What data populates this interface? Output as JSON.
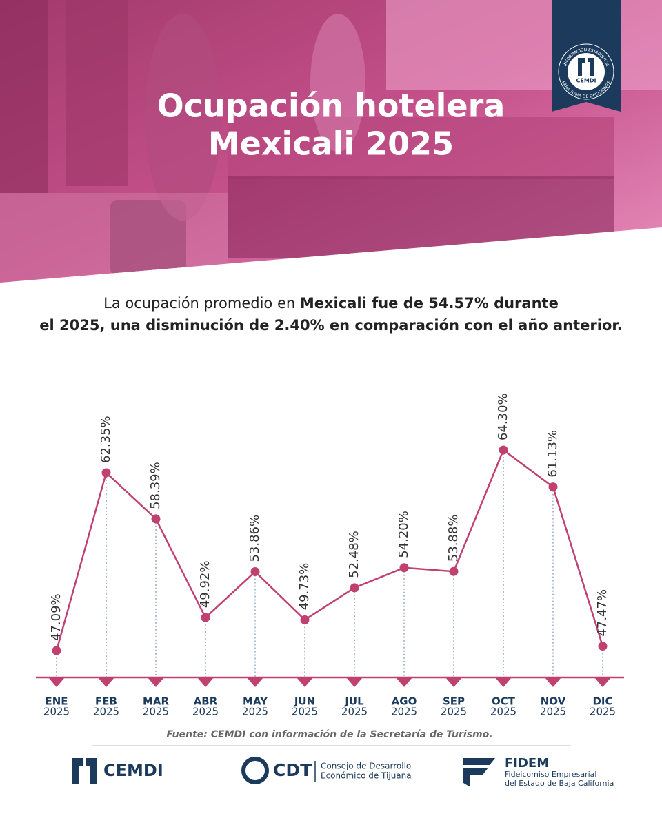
{
  "header": {
    "title_lines": [
      "Ocupación hotelera",
      "Mexicali 2025"
    ],
    "badge": {
      "ring_top": "INFORMACIÓN ESTADÍSTICA",
      "ring_bottom": "PARA TOMA DE DECISIONES",
      "name": "CEMDI"
    }
  },
  "summary": {
    "line1_regular": "La ocupación promedio en ",
    "line1_bold": "Mexicali fue de 54.57% durante",
    "line2": "el 2025, una disminución de 2.40% en comparación con el año anterior."
  },
  "chart_data": {
    "type": "line",
    "categories": [
      "ENE",
      "FEB",
      "MAR",
      "ABR",
      "MAY",
      "JUN",
      "JUL",
      "AGO",
      "SEP",
      "OCT",
      "NOV",
      "DIC"
    ],
    "category_sublabel": "2025",
    "values": [
      47.09,
      62.35,
      58.39,
      49.92,
      53.86,
      49.73,
      52.48,
      54.2,
      53.88,
      64.3,
      61.13,
      47.47
    ],
    "value_labels": [
      "47.09%",
      "62.35%",
      "58.39%",
      "49.92%",
      "53.86%",
      "49.73%",
      "52.48%",
      "54.20%",
      "53.88%",
      "64.30%",
      "61.13%",
      "47.47%"
    ],
    "color": "#c0416f"
  },
  "source": "Fuente: CEMDI con información de la Secretaría de Turismo.",
  "footer": {
    "cemdi": "CEMDI",
    "cdt": {
      "name": "CDT",
      "desc": [
        "Consejo de Desarrollo",
        "Económico de Tijuana"
      ]
    },
    "fidem": {
      "name": "FIDEM",
      "desc": [
        "Fideicomiso Empresarial",
        "del Estado de Baja California"
      ]
    }
  }
}
